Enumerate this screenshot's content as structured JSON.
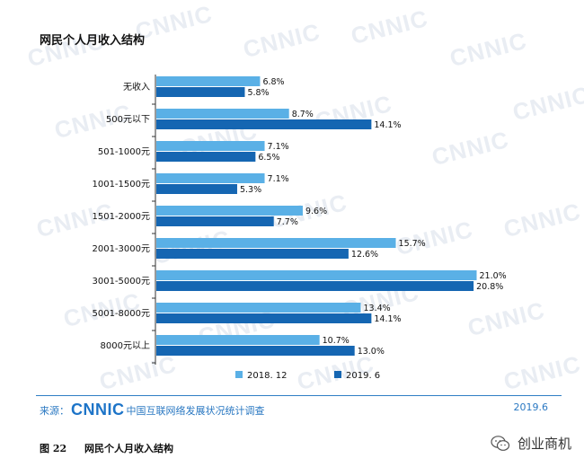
{
  "header": {
    "title": "网民个人月收入结构"
  },
  "chart_data": {
    "type": "bar",
    "orientation": "horizontal",
    "title": "网民个人月收入结构",
    "categories": [
      "无收入",
      "500元以下",
      "501-1000元",
      "1001-1500元",
      "1501-2000元",
      "2001-3000元",
      "3001-5000元",
      "5001-8000元",
      "8000元以上"
    ],
    "series": [
      {
        "name": "2018. 12",
        "color": "#5ab0e6",
        "values": [
          6.8,
          8.7,
          7.1,
          7.1,
          9.6,
          15.7,
          21.0,
          13.4,
          10.7
        ],
        "labels": [
          "6.8%",
          "8.7%",
          "7.1%",
          "7.1%",
          "9.6%",
          "15.7%",
          "21.0%",
          "13.4%",
          "10.7%"
        ]
      },
      {
        "name": "2019. 6",
        "color": "#1566b2",
        "values": [
          5.8,
          14.1,
          6.5,
          5.3,
          7.7,
          12.6,
          20.8,
          14.1,
          13.0
        ],
        "labels": [
          "5.8%",
          "14.1%",
          "6.5%",
          "5.3%",
          "7.7%",
          "12.6%",
          "20.8%",
          "14.1%",
          "13.0%"
        ]
      }
    ],
    "xlim": [
      0,
      21.5
    ],
    "legend": "bottom-center"
  },
  "footer": {
    "source_label": "来源：",
    "brand": "CNNIC",
    "org": "中国互联网络发展状况统计调查",
    "date": "2019.6"
  },
  "caption": {
    "number": "图 22",
    "text": "网民个人月收入结构"
  },
  "wechat": {
    "label": "创业商机"
  },
  "watermark_text": "CNNIC"
}
